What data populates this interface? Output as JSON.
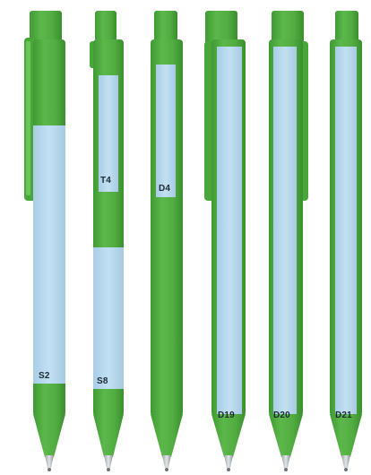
{
  "colors": {
    "green": "#4eaa3e",
    "green_dark": "#3a8e2e",
    "green_light": "#6cc45a",
    "panel": "#b9d9ee",
    "tip": "#c9ccd0",
    "tip_dark": "#6f7478",
    "label": "#1d2a36"
  },
  "pens": [
    {
      "id": "s2",
      "label": "S2"
    },
    {
      "id": "t4-s8",
      "labels": [
        "T4",
        "S8"
      ]
    },
    {
      "id": "d4",
      "label": "D4"
    },
    {
      "id": "d19",
      "label": "D19"
    },
    {
      "id": "d20",
      "label": "D20"
    },
    {
      "id": "d21",
      "label": "D21"
    }
  ]
}
